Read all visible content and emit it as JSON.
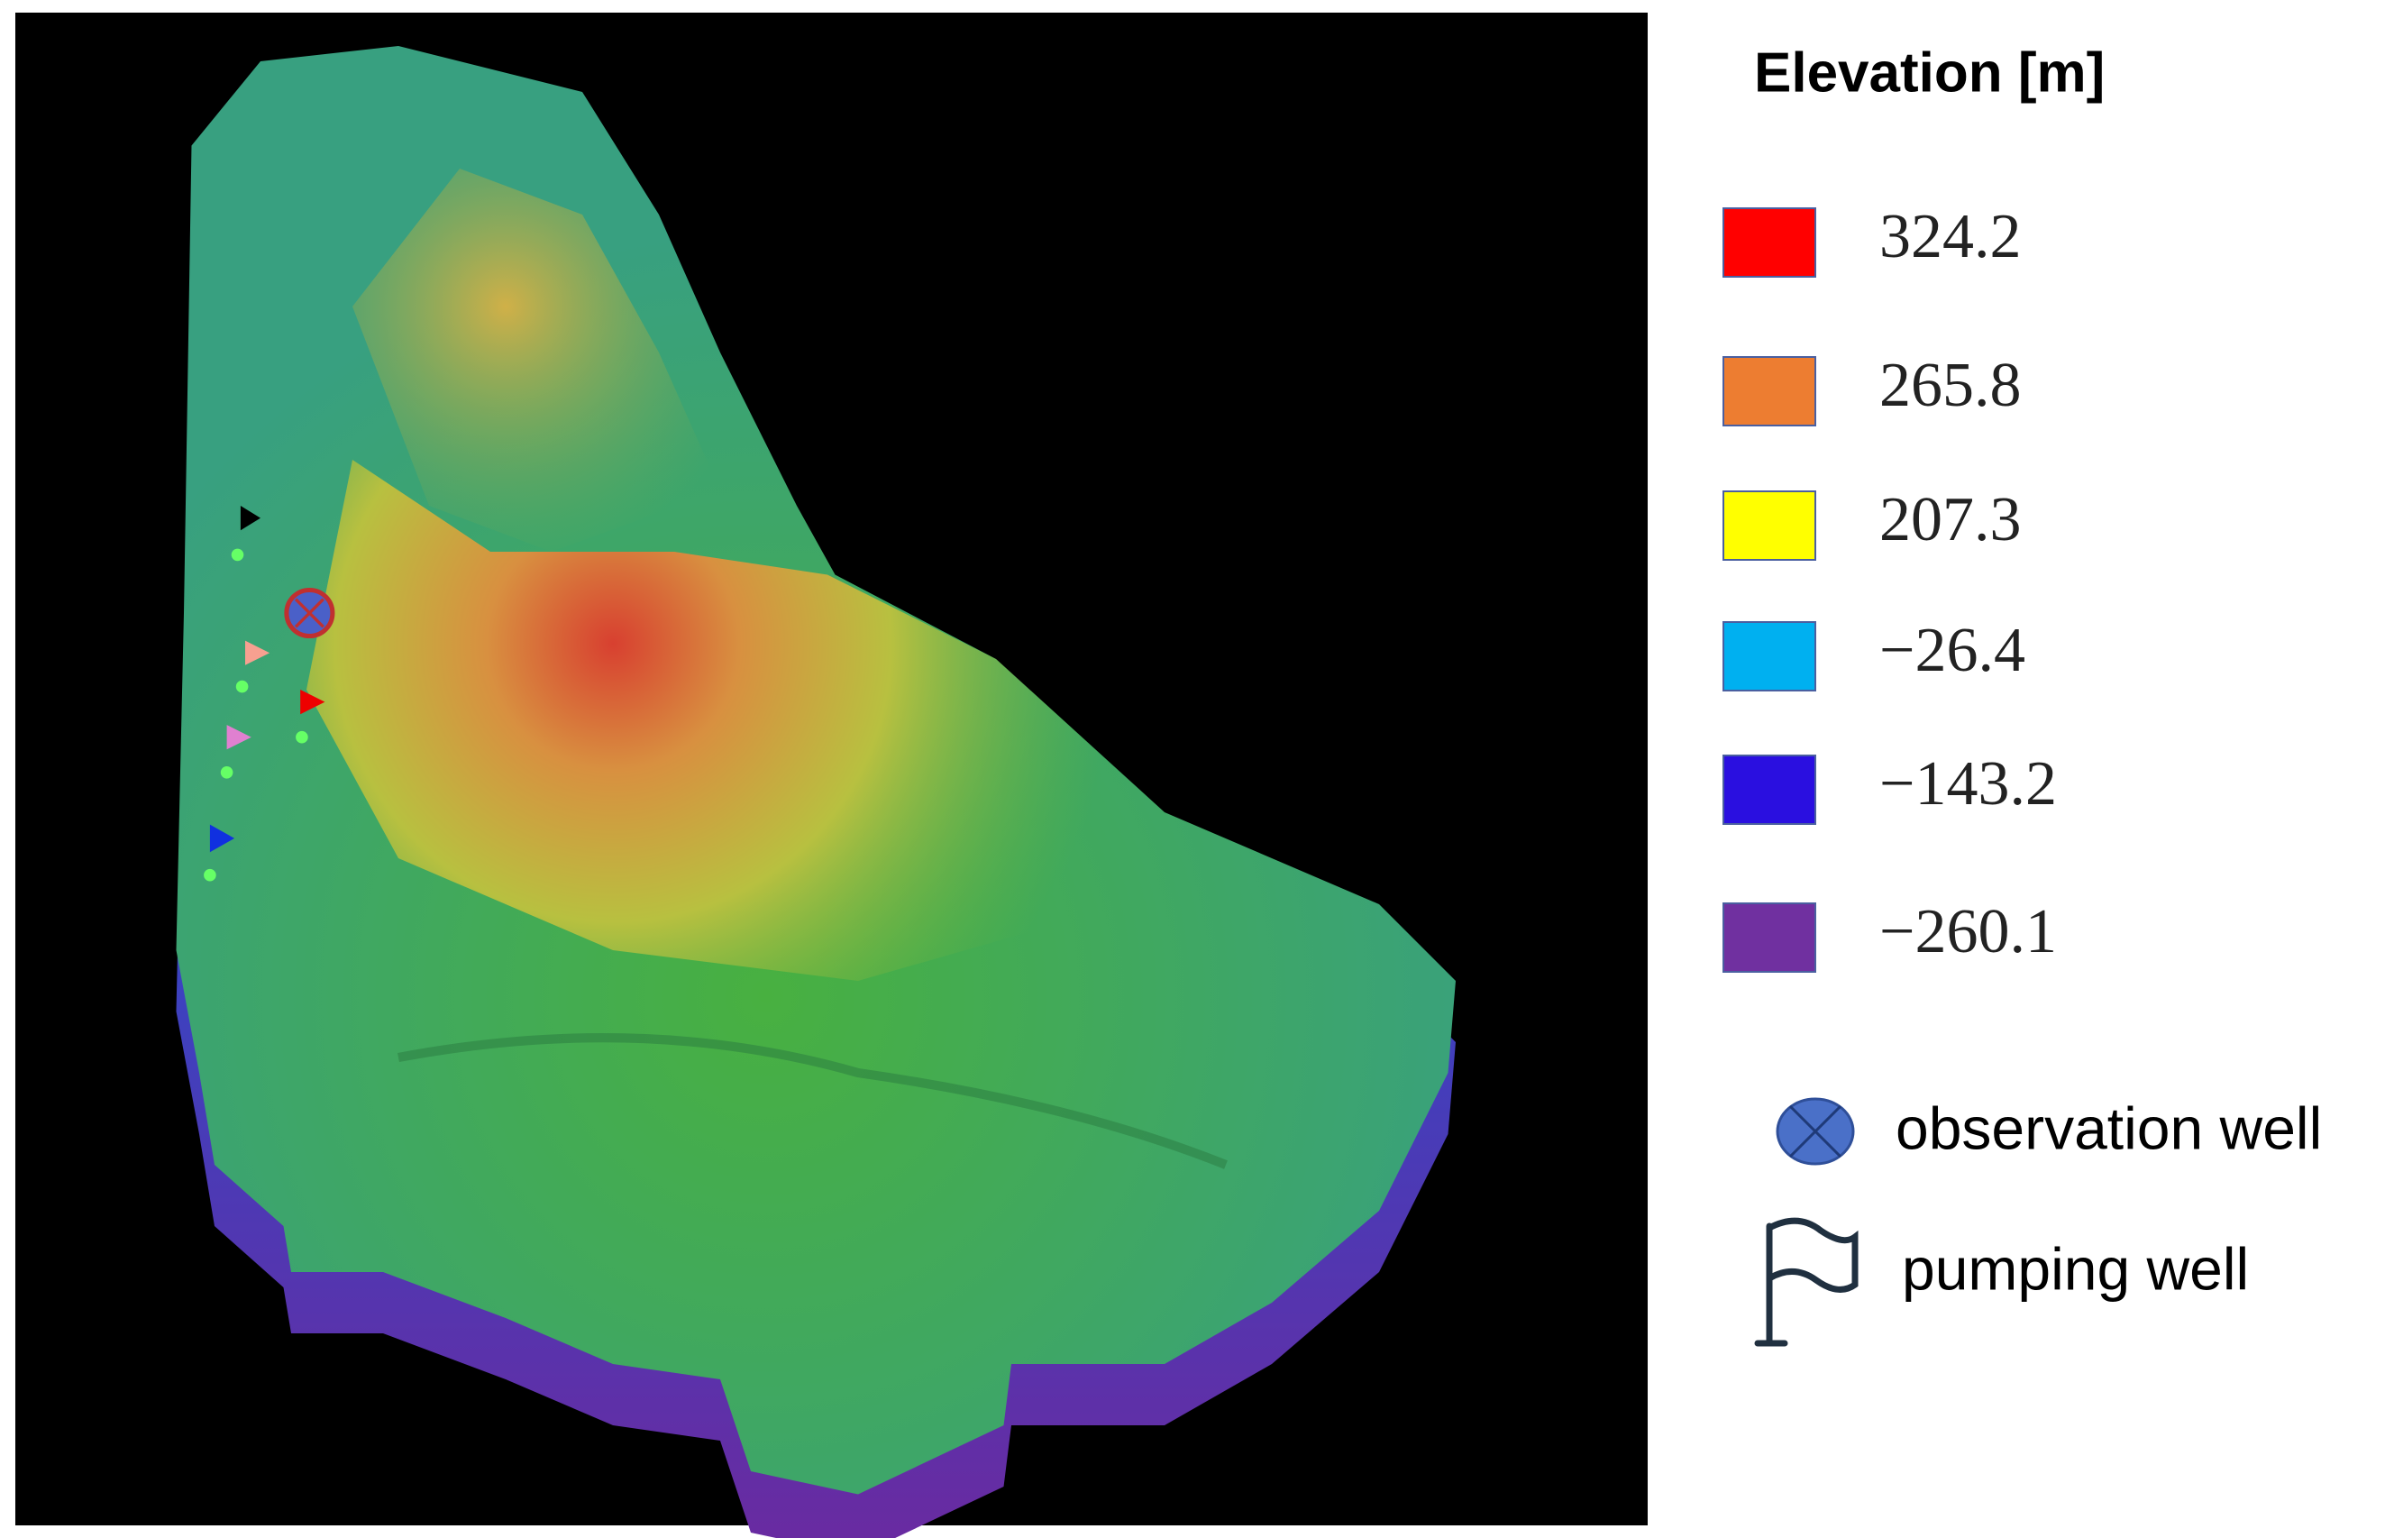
{
  "legend": {
    "title": "Elevation [m]",
    "items": [
      {
        "label": "324.2",
        "color": "#ff0000"
      },
      {
        "label": "265.8",
        "color": "#ed7d31"
      },
      {
        "label": "207.3",
        "color": "#ffff00"
      },
      {
        "label": "−26.4",
        "color": "#00b0f0"
      },
      {
        "label": "−143.2",
        "color": "#2a0fe0"
      },
      {
        "label": "−260.1",
        "color": "#7030a0"
      }
    ]
  },
  "symbols": {
    "observation": "observation well",
    "pumping": "pumping well"
  }
}
